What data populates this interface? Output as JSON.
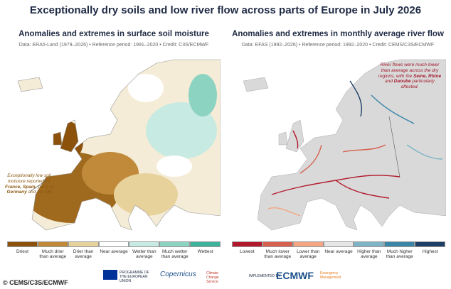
{
  "header": {
    "title": "Exceptionally dry soils and low river flow across parts of Europe in July 2026"
  },
  "panels": [
    {
      "title": "Anomalies and extremes in surface soil moisture",
      "subtitle": "Data: ERA5-Land (1979–2026) • Reference period: 1991–2020 • Credit: C3S/ECMWF",
      "annotation": [
        {
          "text": "Exceptionally low soil moisture reported for "
        },
        {
          "text": "France, Spain,",
          "bold": true
        },
        {
          "text": " parts of "
        },
        {
          "text": "Germany",
          "bold": true
        },
        {
          "text": " and the "
        },
        {
          "text": "UK",
          "bold": true
        }
      ],
      "annotation_color": "#8c5a12",
      "legend": [
        {
          "label": "Driest",
          "color": "#8c510a"
        },
        {
          "label": "Much drier than average",
          "color": "#c08a3a"
        },
        {
          "label": "Drier than average",
          "color": "#e8d29c"
        },
        {
          "label": "Near average",
          "color": "#ffffff"
        },
        {
          "label": "Wetter than average",
          "color": "#c7ebe2"
        },
        {
          "label": "Much wetter than average",
          "color": "#8dd3c2"
        },
        {
          "label": "Wettest",
          "color": "#3db39b"
        }
      ]
    },
    {
      "title": "Anomalies and extremes in monthly average river flow",
      "subtitle": "Data: EFAS (1992–2026) • Reference period: 1992–2020 • Credit: CEMS/C3S/ECMWF",
      "annotation": [
        {
          "text": "River flows were much lower than average across the dry regions, with the "
        },
        {
          "text": "Seine, Rhine",
          "bold": true
        },
        {
          "text": " and "
        },
        {
          "text": "Danube",
          "bold": true
        },
        {
          "text": " particularly affected."
        }
      ],
      "annotation_color": "#a3182a",
      "legend": [
        {
          "label": "Lowest",
          "color": "#b2182b"
        },
        {
          "label": "Much lower than average",
          "color": "#d6604d"
        },
        {
          "label": "Lower than average",
          "color": "#f4a582"
        },
        {
          "label": "Near average",
          "color": "#e6e6e6"
        },
        {
          "label": "Higher than average",
          "color": "#7fb4c6"
        },
        {
          "label": "Much higher than average",
          "color": "#3a86a6"
        },
        {
          "label": "Highest",
          "color": "#1d3f66"
        }
      ]
    }
  ],
  "logos": {
    "eu": "PROGRAMME OF THE EUROPEAN UNION",
    "copernicus": "Copernicus",
    "c3s": "Climate Change Service",
    "implemented": "IMPLEMENTED BY",
    "ecmwf": "ECMWF",
    "cems": "Emergency Management"
  },
  "credit": "© CEMS/C3S/ECMWF"
}
